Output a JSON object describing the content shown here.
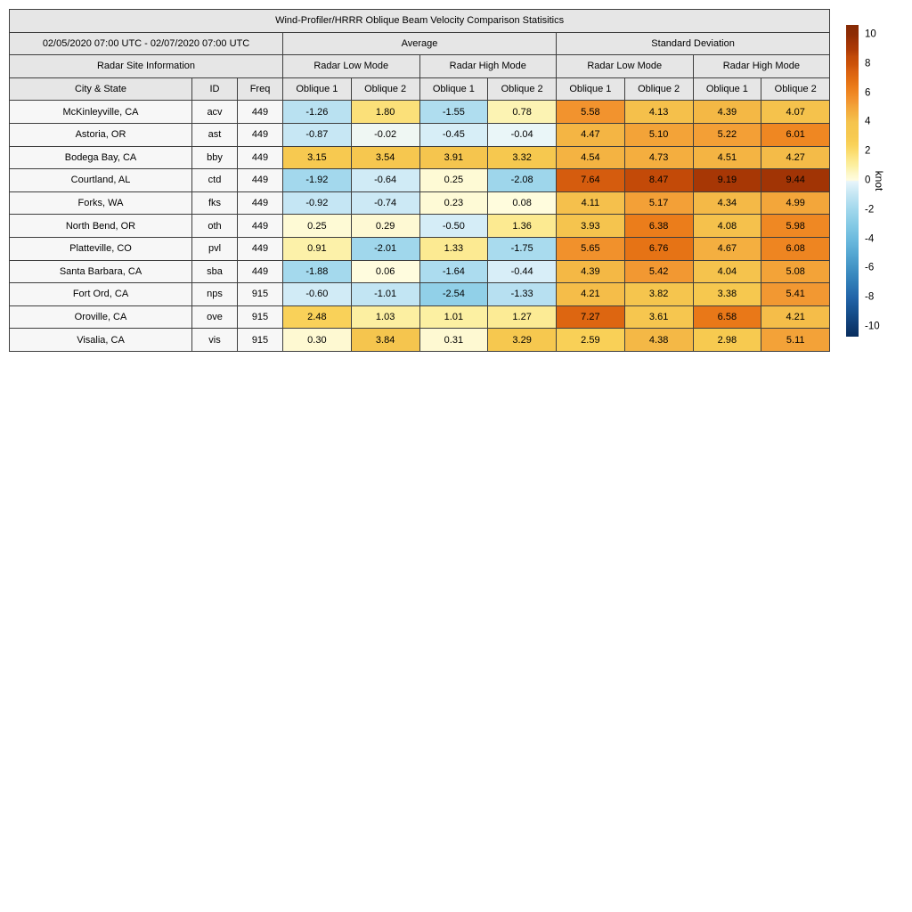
{
  "title": "Wind-Profiler/HRRR Oblique Beam Velocity Comparison Statisitics",
  "header": {
    "date_range": "02/05/2020 07:00 UTC - 02/07/2020 07:00 UTC",
    "group_average": "Average",
    "group_std": "Standard Deviation",
    "site_info": "Radar Site Information",
    "mode_headers": [
      "Radar Low Mode",
      "Radar High Mode",
      "Radar Low Mode",
      "Radar High Mode"
    ],
    "col_headers": [
      "City & State",
      "ID",
      "Freq",
      "Oblique 1",
      "Oblique 2",
      "Oblique 1",
      "Oblique 2",
      "Oblique 1",
      "Oblique 2",
      "Oblique 1",
      "Oblique 2"
    ]
  },
  "chart_data": {
    "type": "table",
    "description": "Heatmap-colored statistics table: average and standard deviation of wind-profiler vs HRRR oblique beam velocity differences (knots), per radar site, low/high mode, oblique beams 1 and 2",
    "value_columns": [
      "avg_low_ob1",
      "avg_low_ob2",
      "avg_high_ob1",
      "avg_high_ob2",
      "std_low_ob1",
      "std_low_ob2",
      "std_high_ob1",
      "std_high_ob2"
    ],
    "rows": [
      {
        "city": "McKinleyville, CA",
        "id": "acv",
        "freq": "449",
        "values": [
          -1.26,
          1.8,
          -1.55,
          0.78,
          5.58,
          4.13,
          4.39,
          4.07
        ]
      },
      {
        "city": "Astoria, OR",
        "id": "ast",
        "freq": "449",
        "values": [
          -0.87,
          -0.02,
          -0.45,
          -0.04,
          4.47,
          5.1,
          5.22,
          6.01
        ]
      },
      {
        "city": "Bodega Bay, CA",
        "id": "bby",
        "freq": "449",
        "values": [
          3.15,
          3.54,
          3.91,
          3.32,
          4.54,
          4.73,
          4.51,
          4.27
        ]
      },
      {
        "city": "Courtland, AL",
        "id": "ctd",
        "freq": "449",
        "values": [
          -1.92,
          -0.64,
          0.25,
          -2.08,
          7.64,
          8.47,
          9.19,
          9.44
        ]
      },
      {
        "city": "Forks, WA",
        "id": "fks",
        "freq": "449",
        "values": [
          -0.92,
          -0.74,
          0.23,
          0.08,
          4.11,
          5.17,
          4.34,
          4.99
        ]
      },
      {
        "city": "North Bend, OR",
        "id": "oth",
        "freq": "449",
        "values": [
          0.25,
          0.29,
          -0.5,
          1.36,
          3.93,
          6.38,
          4.08,
          5.98
        ]
      },
      {
        "city": "Platteville, CO",
        "id": "pvl",
        "freq": "449",
        "values": [
          0.91,
          -2.01,
          1.33,
          -1.75,
          5.65,
          6.76,
          4.67,
          6.08
        ]
      },
      {
        "city": "Santa Barbara, CA",
        "id": "sba",
        "freq": "449",
        "values": [
          -1.88,
          0.06,
          -1.64,
          -0.44,
          4.39,
          5.42,
          4.04,
          5.08
        ]
      },
      {
        "city": "Fort Ord, CA",
        "id": "nps",
        "freq": "915",
        "values": [
          -0.6,
          -1.01,
          -2.54,
          -1.33,
          4.21,
          3.82,
          3.38,
          5.41
        ]
      },
      {
        "city": "Oroville, CA",
        "id": "ove",
        "freq": "915",
        "values": [
          2.48,
          1.03,
          1.01,
          1.27,
          7.27,
          3.61,
          6.58,
          4.21
        ]
      },
      {
        "city": "Visalia, CA",
        "id": "vis",
        "freq": "915",
        "values": [
          0.3,
          3.84,
          0.31,
          3.29,
          2.59,
          4.38,
          2.98,
          5.11
        ]
      }
    ],
    "colorbar": {
      "label": "knot",
      "ticks": [
        10,
        8,
        6,
        4,
        2,
        0,
        -2,
        -4,
        -6,
        -8,
        -10
      ],
      "vmin": -10.67,
      "vmax": 10.67,
      "colormap_stops": [
        [
          -10.67,
          "#082d5e"
        ],
        [
          -10.0,
          "#0e3a70"
        ],
        [
          -9.0,
          "#16508e"
        ],
        [
          -8.0,
          "#2264a8"
        ],
        [
          -7.0,
          "#2f7cb7"
        ],
        [
          -6.0,
          "#4192c4"
        ],
        [
          -5.0,
          "#55a7d2"
        ],
        [
          -4.0,
          "#6cbade"
        ],
        [
          -3.0,
          "#85cae5"
        ],
        [
          -2.0,
          "#a0d7ec"
        ],
        [
          -1.0,
          "#c2e5f3"
        ],
        [
          -0.5,
          "#d5edf7"
        ],
        [
          -0.05,
          "#e8f5fb"
        ],
        [
          0.05,
          "#fffcdf"
        ],
        [
          0.5,
          "#fdf7c8"
        ],
        [
          1.0,
          "#fcf0a2"
        ],
        [
          1.5,
          "#fce78a"
        ],
        [
          2.0,
          "#fbdc6e"
        ],
        [
          2.5,
          "#f9d158"
        ],
        [
          3.0,
          "#f7ca50"
        ],
        [
          4.0,
          "#f5c44e"
        ],
        [
          4.5,
          "#f4b443"
        ],
        [
          5.0,
          "#f3a63a"
        ],
        [
          5.5,
          "#f29530"
        ],
        [
          6.0,
          "#ef8722"
        ],
        [
          6.5,
          "#ea7a19"
        ],
        [
          7.0,
          "#e26c12"
        ],
        [
          7.5,
          "#d96010"
        ],
        [
          8.0,
          "#cb5108"
        ],
        [
          8.5,
          "#c24a08"
        ],
        [
          9.0,
          "#ac3a05"
        ],
        [
          9.5,
          "#a03305"
        ],
        [
          10.0,
          "#8e2c04"
        ],
        [
          10.67,
          "#862a04"
        ]
      ]
    }
  }
}
